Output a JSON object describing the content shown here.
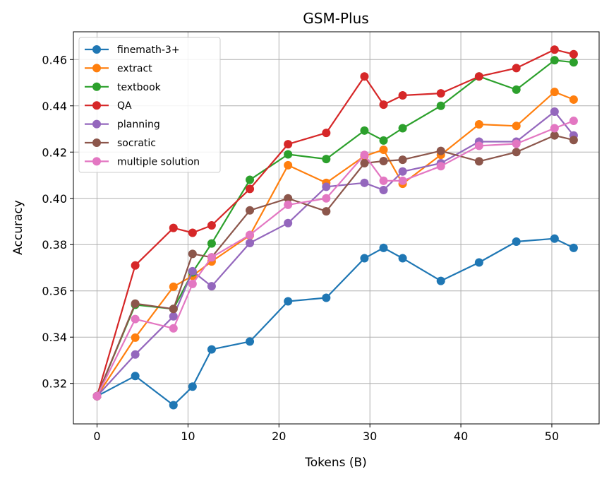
{
  "chart_data": {
    "type": "line",
    "title": "GSM-Plus",
    "xlabel": "Tokens (B)",
    "ylabel": "Accuracy",
    "xlim": [
      -2.6,
      55.2
    ],
    "ylim": [
      0.3025,
      0.472
    ],
    "x_ticks": [
      0,
      10,
      20,
      30,
      40,
      50
    ],
    "x_tick_labels": [
      "0",
      "10",
      "20",
      "30",
      "40",
      "50"
    ],
    "y_ticks": [
      0.32,
      0.34,
      0.36,
      0.38,
      0.4,
      0.42,
      0.44,
      0.46
    ],
    "y_tick_labels": [
      "0.32",
      "0.34",
      "0.36",
      "0.38",
      "0.40",
      "0.42",
      "0.44",
      "0.46"
    ],
    "grid": true,
    "legend_position": "top-left",
    "x": [
      0,
      4.2,
      8.4,
      10.5,
      12.6,
      16.8,
      21,
      25.2,
      29.4,
      31.5,
      33.6,
      37.8,
      42,
      46.1,
      50.3,
      52.4
    ],
    "series": [
      {
        "name": "finemath-3+",
        "color": "#1f77b4",
        "values": [
          0.3145,
          0.3232,
          0.3106,
          0.3186,
          0.3347,
          0.3381,
          0.3555,
          0.357,
          0.3741,
          0.3786,
          0.3741,
          0.3643,
          0.3723,
          0.3813,
          0.3826,
          0.3786
        ]
      },
      {
        "name": "extract",
        "color": "#ff7f0e",
        "values": [
          0.3145,
          0.3398,
          0.3618,
          0.3665,
          0.3727,
          0.384,
          0.4143,
          0.4067,
          0.4183,
          0.421,
          0.4063,
          0.4188,
          0.432,
          0.4313,
          0.446,
          0.4427
        ]
      },
      {
        "name": "textbook",
        "color": "#2ca02c",
        "values": [
          0.3145,
          0.354,
          0.3522,
          0.368,
          0.3805,
          0.408,
          0.419,
          0.417,
          0.4293,
          0.425,
          0.4303,
          0.44,
          0.4527,
          0.447,
          0.4597,
          0.4588
        ]
      },
      {
        "name": "QA",
        "color": "#d62728",
        "values": [
          0.3145,
          0.371,
          0.3872,
          0.3851,
          0.3883,
          0.4041,
          0.4234,
          0.4283,
          0.4527,
          0.4405,
          0.4445,
          0.4454,
          0.4527,
          0.4563,
          0.4643,
          0.4623
        ]
      },
      {
        "name": "planning",
        "color": "#9467bd",
        "values": [
          0.3145,
          0.3325,
          0.349,
          0.3685,
          0.362,
          0.3807,
          0.3893,
          0.405,
          0.4067,
          0.4036,
          0.4116,
          0.4152,
          0.4245,
          0.4245,
          0.4375,
          0.4272
        ]
      },
      {
        "name": "socratic",
        "color": "#8c564b",
        "values": [
          0.3145,
          0.3545,
          0.3522,
          0.376,
          0.3745,
          0.3948,
          0.4,
          0.3944,
          0.4152,
          0.4161,
          0.4167,
          0.4205,
          0.416,
          0.42,
          0.4272,
          0.4252
        ]
      },
      {
        "name": "multiple solution",
        "color": "#e377c2",
        "values": [
          0.3145,
          0.3478,
          0.3438,
          0.363,
          0.3745,
          0.3842,
          0.3972,
          0.4,
          0.4188,
          0.4076,
          0.4076,
          0.4139,
          0.4227,
          0.4236,
          0.4303,
          0.4335
        ]
      }
    ]
  }
}
